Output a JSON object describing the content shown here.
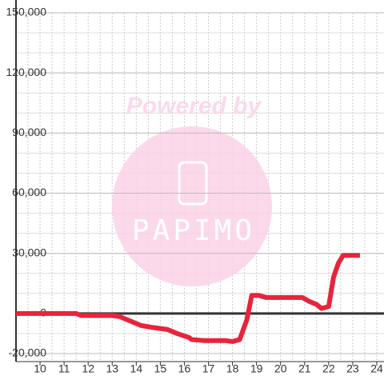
{
  "chart_data": {
    "type": "line",
    "x": [
      9,
      11.5,
      11.7,
      13,
      13.3,
      13.7,
      14.2,
      14.7,
      15.3,
      15.7,
      16.2,
      16.3,
      16.8,
      17.3,
      17.7,
      18.0,
      18.3,
      18.6,
      18.8,
      19.1,
      19.4,
      20.0,
      20.9,
      21.2,
      21.5,
      21.7,
      22.0,
      22.2,
      22.4,
      22.6,
      23.3
    ],
    "series": [
      {
        "color": "#e8243c",
        "values": [
          0,
          0,
          -1000,
          -1000,
          -1500,
          -3500,
          -6000,
          -7000,
          -8000,
          -10000,
          -12000,
          -13000,
          -13500,
          -13500,
          -13500,
          -14000,
          -13000,
          -3000,
          9000,
          9000,
          8000,
          8000,
          8000,
          6000,
          4500,
          2500,
          3500,
          18000,
          25000,
          29000,
          29000
        ]
      }
    ],
    "xlim": [
      9,
      24.3
    ],
    "ylim": [
      -24000,
      150000
    ],
    "xticks": [
      10,
      11,
      12,
      13,
      14,
      15,
      16,
      17,
      18,
      19,
      20,
      21,
      22,
      23,
      24
    ],
    "yticks": [
      {
        "value": 150000,
        "label": "150,000"
      },
      {
        "value": 120000,
        "label": "120,000"
      },
      {
        "value": 90000,
        "label": "90,000"
      },
      {
        "value": 60000,
        "label": "60,000"
      },
      {
        "value": 30000,
        "label": "30,000"
      },
      0,
      {
        "value": -20000,
        "label": "-20,000"
      }
    ],
    "xgrid": [
      9.5,
      10,
      10.5,
      11,
      11.5,
      12,
      12.5,
      13,
      13.5,
      14,
      14.5,
      15,
      15.5,
      16,
      16.5,
      17,
      17.5,
      18,
      18.5,
      19,
      19.5,
      20,
      20.5,
      21,
      21.5,
      22,
      22.5,
      23,
      23.5,
      24
    ],
    "ygrid": [
      -20000,
      -10000,
      10000,
      20000,
      30000,
      40000,
      50000,
      60000,
      70000,
      80000,
      90000,
      100000,
      110000,
      120000,
      130000,
      140000,
      150000
    ],
    "grid": true,
    "watermark": {
      "text": "Powered by",
      "logo": "PAPIMO"
    }
  }
}
